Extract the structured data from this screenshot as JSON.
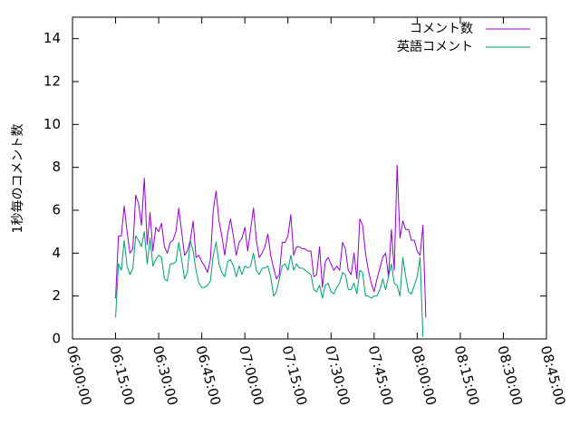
{
  "chart_data": {
    "type": "line",
    "title": "",
    "xlabel": "",
    "ylabel": "1秒毎のコメント数",
    "xlim": [
      "06:00:00",
      "08:45:00"
    ],
    "ylim": [
      0,
      15
    ],
    "grid": false,
    "legend_placement": "top-right",
    "x_ticks": [
      "06:00:00",
      "06:15:00",
      "06:30:00",
      "06:45:00",
      "07:00:00",
      "07:15:00",
      "07:30:00",
      "07:45:00",
      "08:00:00",
      "08:15:00",
      "08:30:00",
      "08:45:00"
    ],
    "y_ticks": [
      0,
      2,
      4,
      6,
      8,
      10,
      12,
      14
    ],
    "x_start": "06:15:00",
    "x_step": "00:01:00",
    "series": [
      {
        "name": "コメント数",
        "color": "#9400d3",
        "values": [
          1.9,
          4.8,
          4.8,
          6.2,
          5.0,
          4.0,
          4.2,
          6.7,
          6.3,
          5.3,
          7.5,
          4.4,
          5.9,
          4.1,
          5.2,
          5.0,
          5.4,
          4.3,
          4.0,
          4.5,
          4.6,
          5.0,
          6.1,
          5.0,
          3.9,
          4.1,
          4.6,
          5.5,
          3.8,
          3.9,
          3.6,
          3.4,
          3.1,
          3.7,
          6.0,
          6.9,
          5.5,
          4.8,
          3.9,
          4.9,
          5.6,
          4.8,
          3.9,
          4.5,
          4.7,
          5.2,
          4.1,
          5.1,
          6.1,
          4.6,
          3.8,
          4.0,
          4.3,
          4.9,
          3.9,
          3.3,
          2.8,
          3.0,
          4.5,
          4.5,
          4.8,
          5.8,
          3.9,
          4.3,
          4.3,
          4.2,
          4.2,
          4.1,
          4.1,
          2.9,
          3.0,
          4.3,
          2.4,
          3.6,
          3.8,
          3.5,
          3.2,
          3.4,
          3.2,
          4.5,
          4.2,
          3.2,
          3.0,
          4.0,
          2.8,
          5.6,
          5.3,
          4.0,
          3.2,
          2.6,
          2.2,
          2.8,
          3.3,
          3.8,
          4.0,
          2.9,
          5.1,
          3.2,
          8.1,
          4.7,
          5.5,
          5.1,
          5.1,
          4.6,
          4.6,
          4.1,
          3.9,
          5.3,
          1.0
        ]
      },
      {
        "name": "英語コメント",
        "color": "#009e73",
        "values": [
          1.0,
          3.5,
          3.2,
          4.6,
          3.4,
          3.0,
          3.3,
          4.8,
          4.6,
          4.3,
          5.0,
          3.5,
          4.7,
          3.4,
          3.7,
          3.9,
          3.8,
          2.8,
          2.7,
          3.5,
          3.5,
          3.6,
          4.5,
          3.7,
          2.8,
          3.1,
          4.6,
          4.1,
          3.2,
          2.6,
          2.4,
          2.4,
          2.5,
          2.7,
          3.9,
          4.5,
          3.5,
          3.1,
          2.9,
          3.6,
          3.7,
          3.4,
          2.9,
          3.4,
          3.0,
          3.4,
          3.3,
          3.4,
          4.0,
          3.2,
          3.0,
          3.3,
          3.3,
          3.4,
          2.9,
          2.0,
          2.2,
          2.8,
          3.4,
          3.5,
          3.2,
          3.9,
          3.2,
          3.5,
          3.3,
          3.3,
          3.2,
          3.1,
          3.0,
          2.3,
          2.2,
          2.5,
          1.9,
          2.5,
          2.6,
          2.2,
          2.1,
          2.4,
          2.6,
          3.1,
          3.0,
          2.3,
          2.3,
          2.6,
          2.1,
          3.2,
          3.1,
          2.0,
          2.0,
          1.9,
          2.0,
          2.0,
          2.3,
          2.8,
          2.3,
          2.9,
          3.5,
          2.6,
          2.5,
          2.0,
          3.8,
          2.9,
          2.2,
          2.1,
          2.5,
          2.9,
          3.8,
          0.1
        ]
      }
    ]
  }
}
